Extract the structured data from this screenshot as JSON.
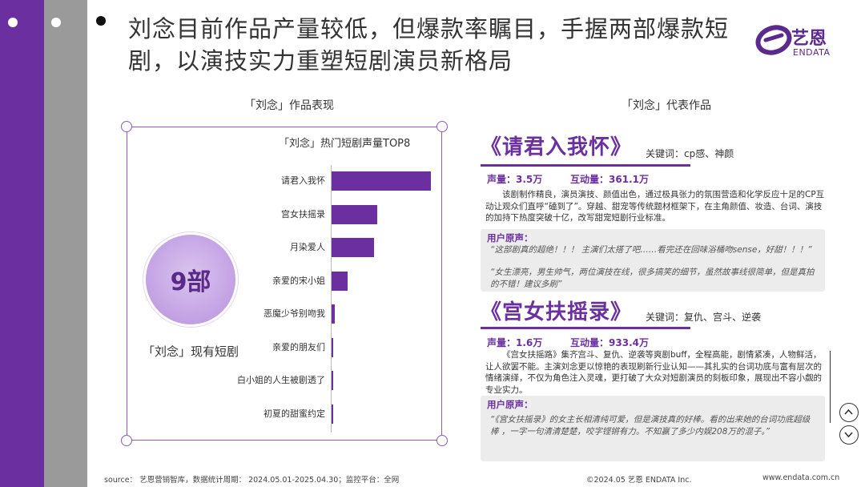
{
  "headline": "刘念目前作品产量较低，但爆款率瞩目，手握两部爆款短剧，以演技实力重塑短剧演员新格局",
  "brand": {
    "name_cn": "艺恩",
    "name_en": "ENDATA"
  },
  "left_section": {
    "title": "「刘念」作品表现",
    "count_value": "9部",
    "count_label": "「刘念」现有短剧"
  },
  "chart_data": {
    "type": "bar",
    "orientation": "horizontal",
    "title": "「刘念」热门短剧声量TOP8",
    "categories": [
      "请君入我怀",
      "宫女扶摇录",
      "月染爱人",
      "亲爱的宋小姐",
      "恶魔少爷别吻我",
      "亲爱的朋友们",
      "白小姐的人生被剧透了",
      "初夏的甜蜜约定"
    ],
    "values": [
      3.5,
      1.6,
      1.5,
      0.55,
      0.12,
      0.06,
      0.04,
      0.03
    ],
    "unit": "万",
    "xlim": [
      0,
      3.6
    ],
    "color": "#6b2fa0",
    "grid": false
  },
  "right_section": {
    "title": "「刘念」代表作品",
    "works": [
      {
        "title": "《请君入我怀》",
        "keywords": "关键词：cp感、神颜",
        "volume_label": "声量：",
        "volume": "3.5万",
        "interaction_label": "互动量：",
        "interaction": "361.1万",
        "description": "该剧制作精良，演员演技、颜值出色，通过极具张力的氛围营造和化学反应十足的CP互动让观众们直呼“磕到了”。穿越、甜宠等传统题材框架下，在主角颜值、妆造、台词、演技的加持下热度突破十亿，改写甜宠短剧行业标准。",
        "voice_label": "用户原声：",
        "voices": [
          "“这部剧真的超绝！！！    主演们太搭了吧……看完还在回味浴桶吻sense，好甜！！！”",
          "“女生漂亮，男生帅气，两位演技在线，很多搞笑的细节，虽然故事线很简单，但是真拍的不错！建议多刷”"
        ]
      },
      {
        "title": "《宫女扶摇录》",
        "keywords": "关键词：复仇、宫斗、逆袭",
        "volume_label": "声量：",
        "volume": "1.6万",
        "interaction_label": "互动量：",
        "interaction": "933.4万",
        "description": "《宫女扶摇路》集齐宫斗、复仇、逆袭等爽剧buff，全程高能，剧情紧凑，人物鲜活，让人欲罢不能。主演刘念更以惊艳的表现刷新行业认知——其扎实的台词功底与富有层次的情绪演绎，不仅为角色注入灵魂，更打破了大众对短剧演员的刻板印象，展现出不容小觑的专业实力。",
        "voice_label": "用户原声：",
        "voices": [
          "“《宫女扶摇录》的女主长相清纯可爱，但是演技真的好棒。看的出来她的台词功底超级棒      ，一字一句清清楚楚，咬字铿锵有力。不知赢了多少内娱208万的混子。”"
        ]
      }
    ]
  },
  "footer": {
    "source": "source： 艺恩营销智库，数据统计周期： 2024.05.01-2025.04.30；监控平台：全网",
    "copyright": "©2024.05  艺恩  ENDATA Inc.",
    "website": "www.endata.com.cn"
  }
}
